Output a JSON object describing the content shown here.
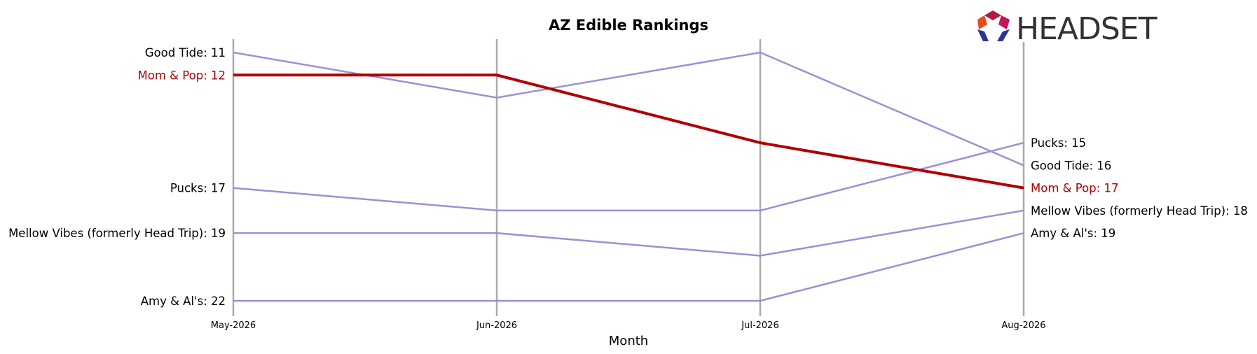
{
  "chart_data": {
    "type": "line",
    "title": "AZ Edible Rankings",
    "xlabel": "Month",
    "ylabel": "",
    "categories": [
      "May-2026",
      "Jun-2026",
      "Jul-2026",
      "Aug-2026"
    ],
    "ylim": [
      11,
      22
    ],
    "y_inverted": true,
    "grid": "vertical lines at each month",
    "highlight_series": "Mom & Pop",
    "series": [
      {
        "name": "Good Tide",
        "values": [
          11,
          13,
          11,
          16
        ],
        "start_label": "Good Tide: 11",
        "end_label": "Good Tide: 16"
      },
      {
        "name": "Mom & Pop",
        "values": [
          12,
          12,
          15,
          17
        ],
        "start_label": "Mom & Pop: 12",
        "end_label": "Mom & Pop: 17"
      },
      {
        "name": "Pucks",
        "values": [
          17,
          18,
          18,
          15
        ],
        "start_label": "Pucks: 17",
        "end_label": "Pucks: 15"
      },
      {
        "name": "Mellow Vibes (formerly Head Trip)",
        "values": [
          19,
          19,
          20,
          18
        ],
        "start_label": "Mellow Vibes (formerly Head Trip): 19",
        "end_label": "Mellow Vibes (formerly Head Trip): 18"
      },
      {
        "name": "Amy & Al's",
        "values": [
          22,
          22,
          22,
          19
        ],
        "start_label": "Amy & Al's: 22",
        "end_label": "Amy & Al's: 19"
      }
    ]
  },
  "logo": {
    "text": "HEADSET"
  },
  "colors": {
    "series_line": "#9b8fd8",
    "highlight_line": "#b00000",
    "highlight_text": "#b00000",
    "axis_line": "#aaaaaa",
    "text": "#000000"
  }
}
